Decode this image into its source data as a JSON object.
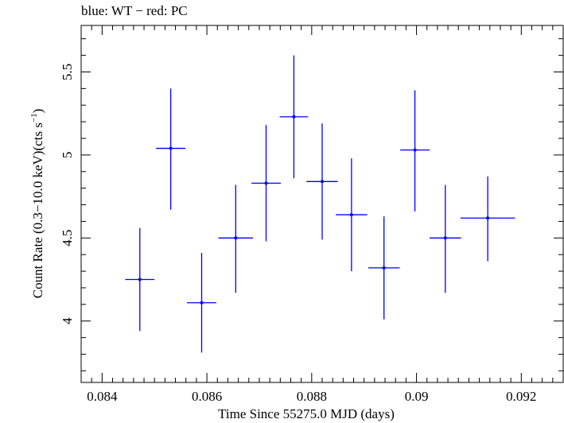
{
  "chart_data": {
    "type": "scatter",
    "title": "blue: WT − red: PC",
    "xlabel": "Time Since 55275.0 MJD (days)",
    "ylabel_main": "Count Rate (0.3−10.0 keV)(cts s",
    "ylabel_sup": "−1",
    "ylabel_end": ")",
    "xlim": [
      0.0836,
      0.0928
    ],
    "ylim": [
      3.63,
      5.78
    ],
    "xticks": [
      0.084,
      0.086,
      0.088,
      0.09,
      0.092
    ],
    "xtick_labels": [
      "0.084",
      "0.086",
      "0.088",
      "0.09",
      "0.092"
    ],
    "yticks": [
      4,
      4.5,
      5,
      5.5
    ],
    "ytick_labels": [
      "4",
      "4.5",
      "5",
      "5.5"
    ],
    "grid": false,
    "series": [
      {
        "color": "#0000ff",
        "points": [
          {
            "x": 0.08472,
            "xerr": 0.00028,
            "y": 4.25,
            "ylo": 3.94,
            "yhi": 4.56
          },
          {
            "x": 0.08531,
            "xerr": 0.00028,
            "y": 5.04,
            "ylo": 4.67,
            "yhi": 5.4
          },
          {
            "x": 0.0859,
            "xerr": 0.00028,
            "y": 4.11,
            "ylo": 3.81,
            "yhi": 4.41
          },
          {
            "x": 0.08655,
            "xerr": 0.00033,
            "y": 4.5,
            "ylo": 4.17,
            "yhi": 4.82
          },
          {
            "x": 0.08713,
            "xerr": 0.00028,
            "y": 4.83,
            "ylo": 4.48,
            "yhi": 5.18
          },
          {
            "x": 0.08766,
            "xerr": 0.00027,
            "y": 5.23,
            "ylo": 4.86,
            "yhi": 5.6
          },
          {
            "x": 0.0882,
            "xerr": 0.0003,
            "y": 4.84,
            "ylo": 4.49,
            "yhi": 5.19
          },
          {
            "x": 0.08876,
            "xerr": 0.0003,
            "y": 4.64,
            "ylo": 4.3,
            "yhi": 4.98
          },
          {
            "x": 0.08938,
            "xerr": 0.0003,
            "y": 4.32,
            "ylo": 4.01,
            "yhi": 4.63
          },
          {
            "x": 0.08997,
            "xerr": 0.00028,
            "y": 5.03,
            "ylo": 4.66,
            "yhi": 5.39
          },
          {
            "x": 0.09055,
            "xerr": 0.0003,
            "y": 4.5,
            "ylo": 4.17,
            "yhi": 4.82
          },
          {
            "x": 0.09136,
            "xerr": 0.00052,
            "y": 4.62,
            "ylo": 4.36,
            "yhi": 4.87
          }
        ]
      }
    ]
  }
}
